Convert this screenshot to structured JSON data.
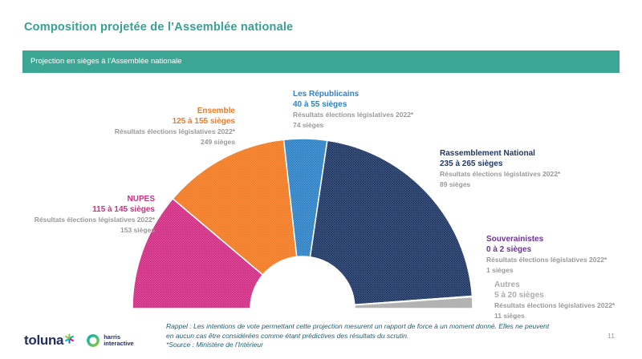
{
  "page": {
    "title": "Composition projetée de l’Assemblée nationale",
    "banner": "Projection en sièges à l’Assemblée nationale",
    "page_number": "11",
    "footnote_line1": "Rappel : Les intentions de vote permettant cette projection mesurent un rapport de force à un moment donné. Elles ne peuvent",
    "footnote_line2": "en aucun cas être considérées comme étant prédictives des résultats du scrutin.",
    "source": "*Source : Ministère de l’Intérieur"
  },
  "branding": {
    "toluna_wordmark": "toluna",
    "harris_line1": "harris",
    "harris_line2": "interactive"
  },
  "colors": {
    "title_teal": "#35A192",
    "banner_teal": "#3CA795",
    "banner_text": "#FFFFFF",
    "meta_text": "#999999",
    "footnote_text": "#1E5F70",
    "page_number": "#9A9A9A",
    "logo_navy": "#232E61"
  },
  "chart_data": {
    "type": "half-donut",
    "title": "Projection en sièges à l'Assemblée nationale",
    "orientation": "semicircle-180-degrees",
    "unit": "sièges",
    "segments": [
      {
        "party": "NUPES",
        "projection_range": "115 à 145 sièges",
        "range_min": 115,
        "range_max": 145,
        "mid_seats": 130,
        "color": "#D22D84",
        "result_label": "Résultats élections législatives 2022*",
        "result_value": "153 sièges"
      },
      {
        "party": "Ensemble",
        "projection_range": "125 à 155 sièges",
        "range_min": 125,
        "range_max": 155,
        "mid_seats": 140,
        "color": "#F37A21",
        "result_label": "Résultats élections législatives 2022*",
        "result_value": "249 sièges"
      },
      {
        "party": "Les Républicains",
        "projection_range": "40 à 55 sièges",
        "range_min": 40,
        "range_max": 55,
        "mid_seats": 47.5,
        "color": "#2E82C6",
        "result_label": "Résultats élections législatives 2022*",
        "result_value": "74 sièges"
      },
      {
        "party": "Rassemblement National",
        "projection_range": "235 à 265 sièges",
        "range_min": 235,
        "range_max": 265,
        "mid_seats": 250,
        "color": "#1F3765",
        "result_label": "Résultats élections législatives 2022*",
        "result_value": "89 sièges"
      },
      {
        "party": "Souverainistes",
        "projection_range": "0 à 2 sièges",
        "range_min": 0,
        "range_max": 2,
        "mid_seats": 1,
        "color": "#7030A0",
        "result_label": "Résultats élections législatives 2022*",
        "result_value": "1 sièges"
      },
      {
        "party": "Autres",
        "projection_range": "5 à 20 sièges",
        "range_min": 5,
        "range_max": 20,
        "mid_seats": 12.5,
        "color": "#ACACAC",
        "result_label": "Résultats élections législatives 2022*",
        "result_value": "11 sièges"
      }
    ]
  }
}
